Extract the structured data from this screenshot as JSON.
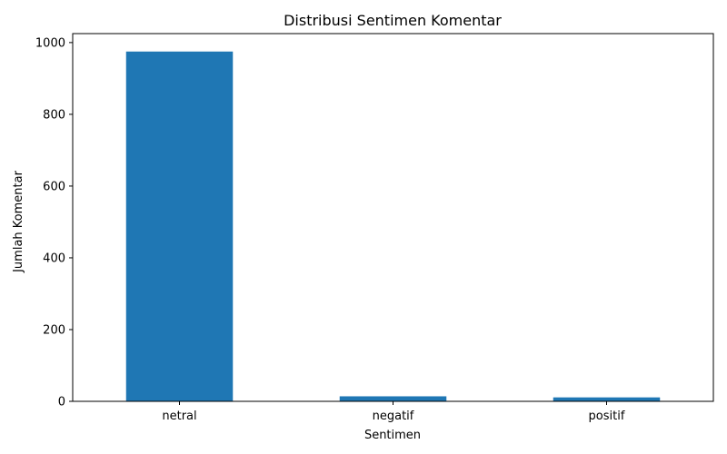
{
  "chart_data": {
    "type": "bar",
    "title": "Distribusi Sentimen Komentar",
    "xlabel": "Sentimen",
    "ylabel": "Jumlah Komentar",
    "categories": [
      "netral",
      "negatif",
      "positif"
    ],
    "values": [
      975,
      14,
      11
    ],
    "ylim": [
      0,
      1025
    ],
    "yticks": [
      0,
      200,
      400,
      600,
      800,
      1000
    ],
    "grid": false,
    "legend": "none",
    "bar_color": "#1f77b4"
  }
}
